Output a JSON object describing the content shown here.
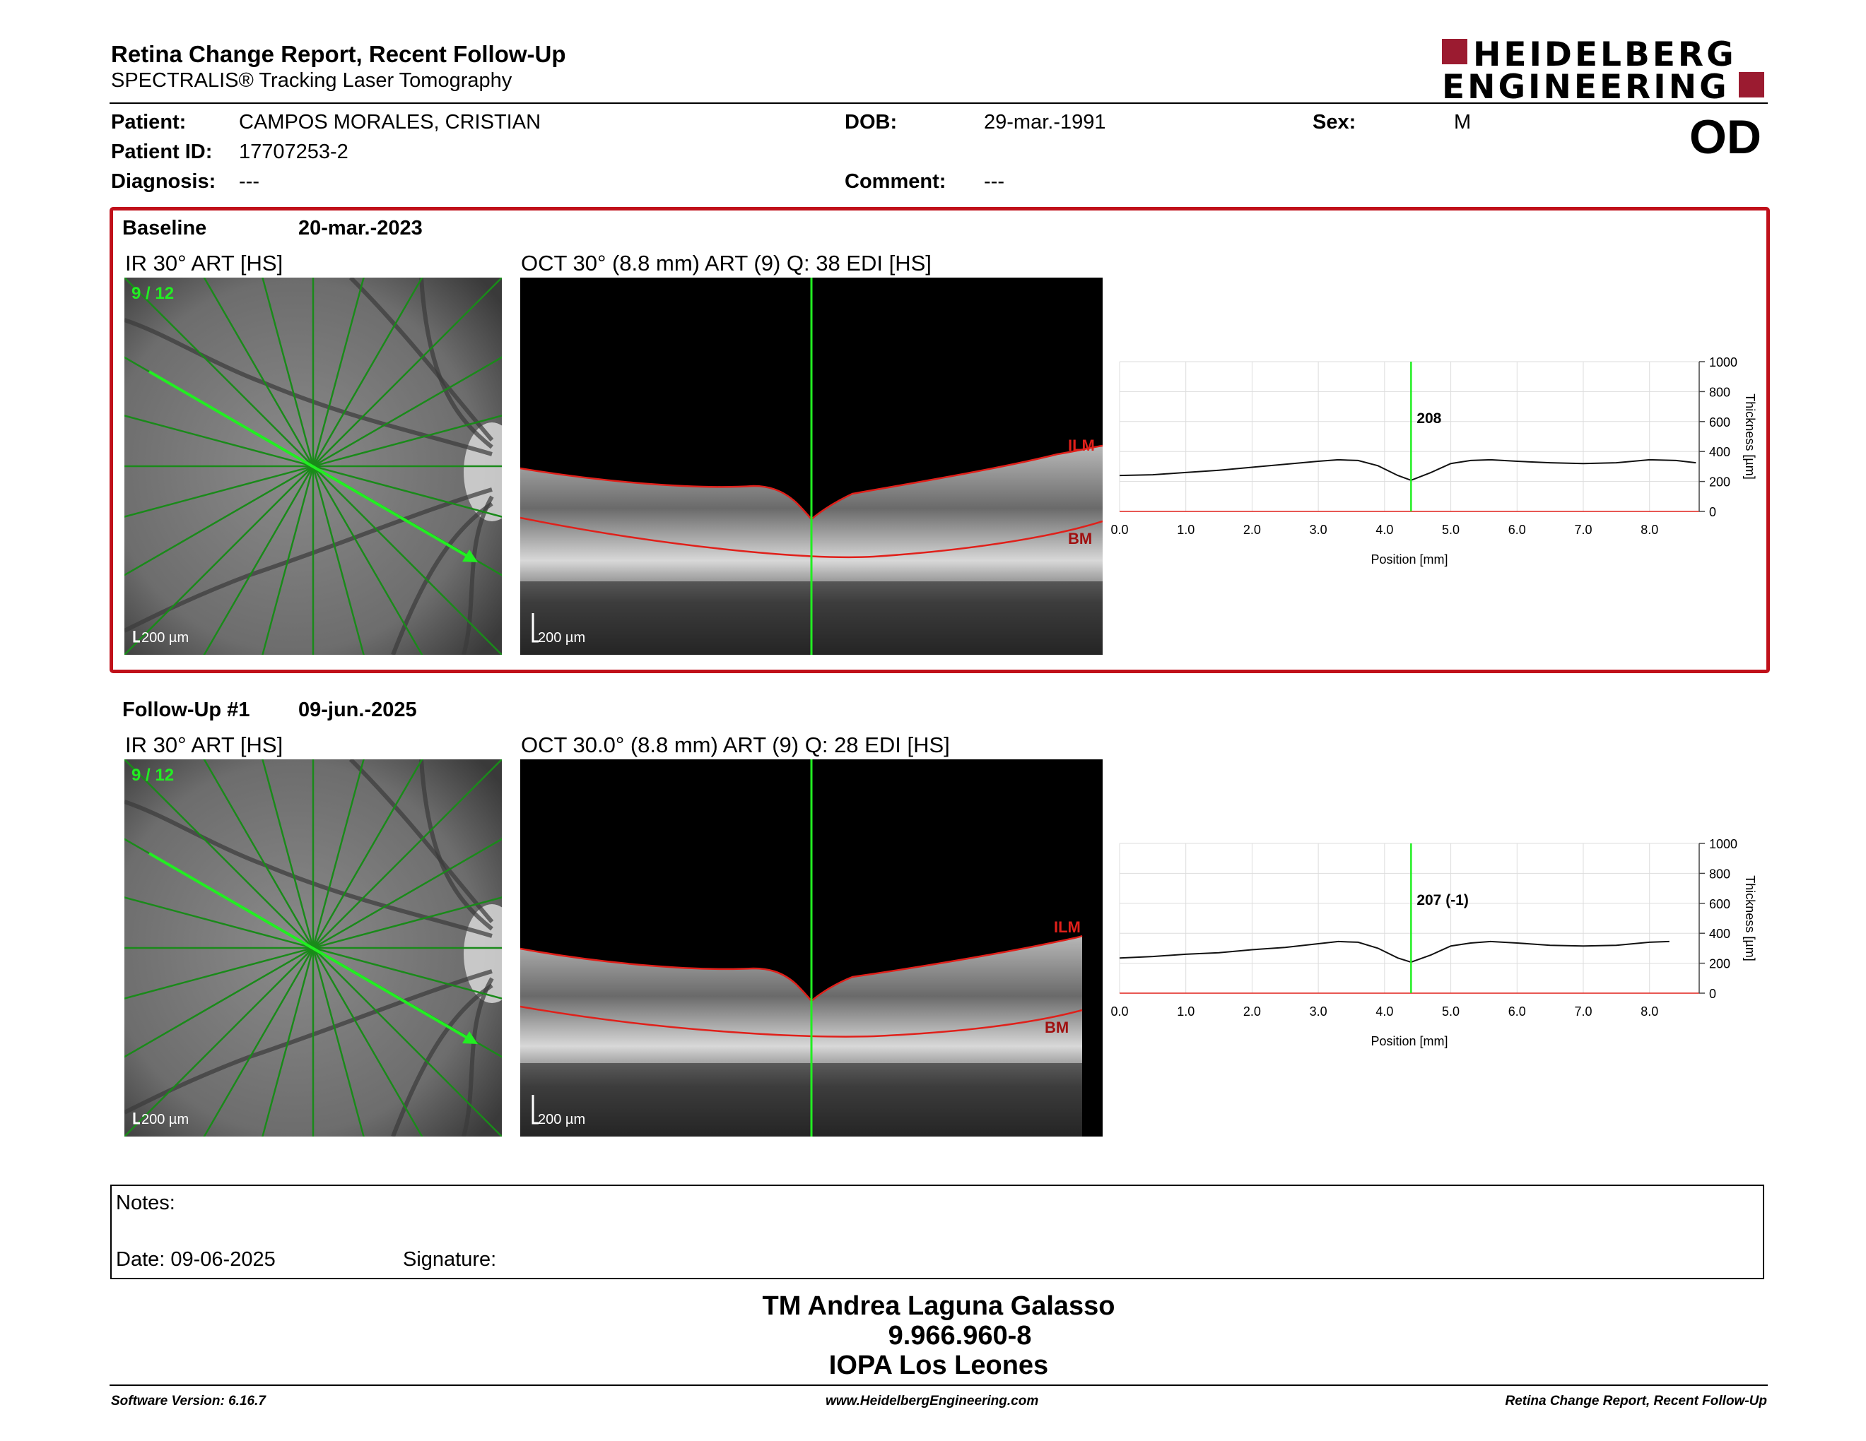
{
  "header": {
    "title": "Retina Change Report, Recent Follow-Up",
    "subtitle": "SPECTRALIS® Tracking Laser Tomography",
    "logo_line1": "HEIDELBERG",
    "logo_line2": "ENGINEERING",
    "eye": "OD"
  },
  "patient": {
    "patient_label": "Patient:",
    "patient_value": "CAMPOS MORALES, CRISTIAN",
    "id_label": "Patient ID:",
    "id_value": "17707253-2",
    "diagnosis_label": "Diagnosis:",
    "diagnosis_value": "---",
    "dob_label": "DOB:",
    "dob_value": "29-mar.-1991",
    "comment_label": "Comment:",
    "comment_value": "---",
    "sex_label": "Sex:",
    "sex_value": "M"
  },
  "visits": [
    {
      "name": "Baseline",
      "date": "20-mar.-2023",
      "ir_label": "IR 30° ART [HS]",
      "oct_label": "OCT 30° (8.8 mm) ART (9) Q: 38 EDI [HS]",
      "scan_index": "9 / 12",
      "scale_label": "200 µm",
      "ilm": "ILM",
      "bm": "BM",
      "marker_value": "208"
    },
    {
      "name": "Follow-Up #1",
      "date": "09-jun.-2025",
      "ir_label": "IR 30° ART [HS]",
      "oct_label": "OCT 30.0° (8.8 mm) ART (9) Q: 28 EDI [HS]",
      "scan_index": "9 / 12",
      "scale_label": "200 µm",
      "ilm": "ILM",
      "bm": "BM",
      "marker_value": "207 (-1)"
    }
  ],
  "chart_data": [
    {
      "type": "line",
      "xlabel": "Position [mm]",
      "ylabel": "Thickness [µm]",
      "xlim": [
        0,
        8.8
      ],
      "ylim": [
        0,
        1000
      ],
      "x_ticks": [
        "0.0",
        "1.0",
        "2.0",
        "3.0",
        "4.0",
        "5.0",
        "6.0",
        "7.0",
        "8.0"
      ],
      "y_ticks": [
        "0",
        "200",
        "400",
        "600",
        "800",
        "1000"
      ],
      "marker_x": 4.4,
      "marker_label": "208",
      "series": [
        {
          "x": [
            0,
            0.5,
            1,
            1.5,
            2,
            2.5,
            3,
            3.3,
            3.6,
            3.9,
            4.2,
            4.4,
            4.7,
            5.0,
            5.3,
            5.6,
            6.0,
            6.5,
            7.0,
            7.5,
            8.0,
            8.4,
            8.7
          ],
          "values": [
            240,
            245,
            260,
            275,
            295,
            315,
            335,
            345,
            340,
            305,
            240,
            208,
            260,
            320,
            340,
            345,
            335,
            325,
            320,
            325,
            345,
            340,
            325
          ]
        }
      ]
    },
    {
      "type": "line",
      "xlabel": "Position [mm]",
      "ylabel": "Thickness [µm]",
      "xlim": [
        0,
        8.8
      ],
      "ylim": [
        0,
        1000
      ],
      "x_ticks": [
        "0.0",
        "1.0",
        "2.0",
        "3.0",
        "4.0",
        "5.0",
        "6.0",
        "7.0",
        "8.0"
      ],
      "y_ticks": [
        "0",
        "200",
        "400",
        "600",
        "800",
        "1000"
      ],
      "marker_x": 4.4,
      "marker_label": "207 (-1)",
      "series": [
        {
          "x": [
            0,
            0.5,
            1,
            1.5,
            2,
            2.5,
            3,
            3.3,
            3.6,
            3.9,
            4.2,
            4.4,
            4.7,
            5.0,
            5.3,
            5.6,
            6.0,
            6.5,
            7.0,
            7.5,
            8.0,
            8.3
          ],
          "values": [
            235,
            245,
            260,
            270,
            290,
            305,
            330,
            345,
            340,
            300,
            235,
            207,
            255,
            315,
            335,
            345,
            335,
            320,
            315,
            320,
            340,
            345
          ]
        }
      ]
    }
  ],
  "notes": {
    "notes_label": "Notes:",
    "date_label": "Date: 09-06-2025",
    "signature_label": "Signature:"
  },
  "signatory": {
    "line1": "TM Andrea Laguna Galasso",
    "line2": "9.966.960-8",
    "line3": "IOPA Los Leones"
  },
  "footer": {
    "left": "Software Version: 6.16.7",
    "center": "www.HeidelbergEngineering.com",
    "right": "Retina Change Report, Recent Follow-Up"
  },
  "colors": {
    "accent": "#9b1b30",
    "box": "#c0101a",
    "scan_line": "#22dd22",
    "segmentation": "#e0201a"
  }
}
